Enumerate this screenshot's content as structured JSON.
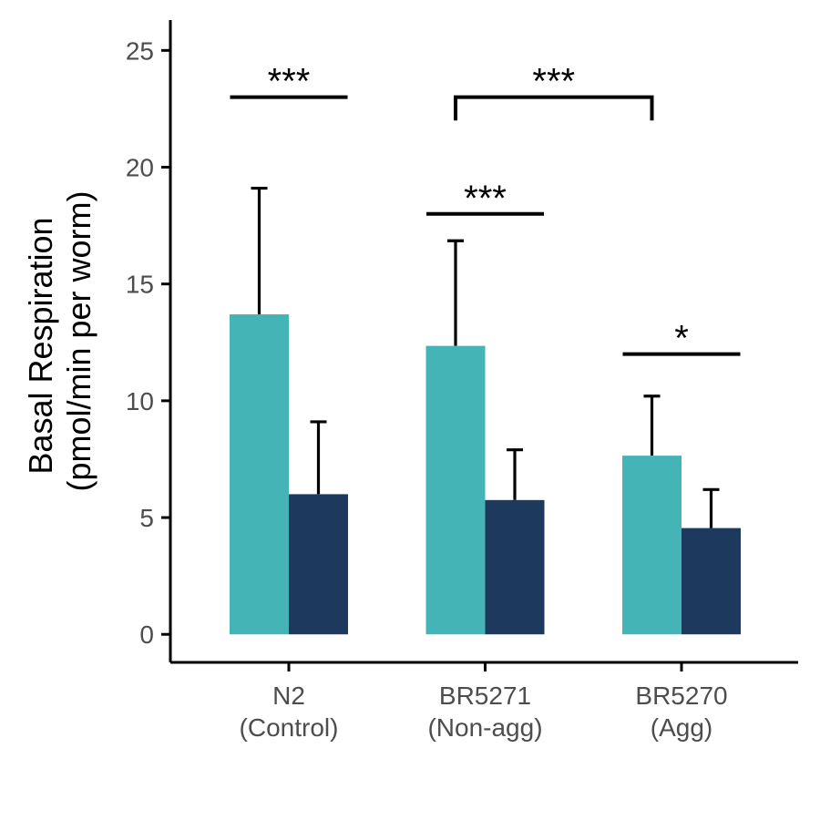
{
  "chart_data": {
    "type": "bar",
    "categories": [
      [
        "N2",
        "(Control)"
      ],
      [
        "BR5271",
        "(Non-agg)"
      ],
      [
        "BR5270",
        "(Agg)"
      ]
    ],
    "series": [
      {
        "color": "#45b4b6",
        "values": [
          13.7,
          12.35,
          7.65
        ],
        "error": [
          5.4,
          4.5,
          2.55
        ]
      },
      {
        "color": "#1d3a5e",
        "values": [
          6.0,
          5.75,
          4.55
        ],
        "error": [
          3.1,
          2.15,
          1.65
        ]
      }
    ],
    "ylabel": [
      "Basal Respiration",
      "(pmol/min per worm)"
    ],
    "xlabel": "",
    "ylim": [
      -1.2,
      26.3
    ],
    "yticks": [
      0,
      5,
      10,
      15,
      20,
      25
    ],
    "significance": [
      {
        "label": "***",
        "x_from": [
          0,
          0
        ],
        "x_to": [
          0,
          1
        ],
        "y": 23,
        "bracket": false
      },
      {
        "label": "***",
        "x_from": [
          1,
          0
        ],
        "x_to": [
          1,
          1
        ],
        "y": 18,
        "bracket": false
      },
      {
        "label": "***",
        "x_from": [
          1,
          0
        ],
        "x_to": [
          2,
          0
        ],
        "y": 23,
        "bracket": true,
        "drop_to": 22
      },
      {
        "label": "*",
        "x_from": [
          2,
          0
        ],
        "x_to": [
          2,
          1
        ],
        "y": 12,
        "bracket": false
      }
    ]
  }
}
